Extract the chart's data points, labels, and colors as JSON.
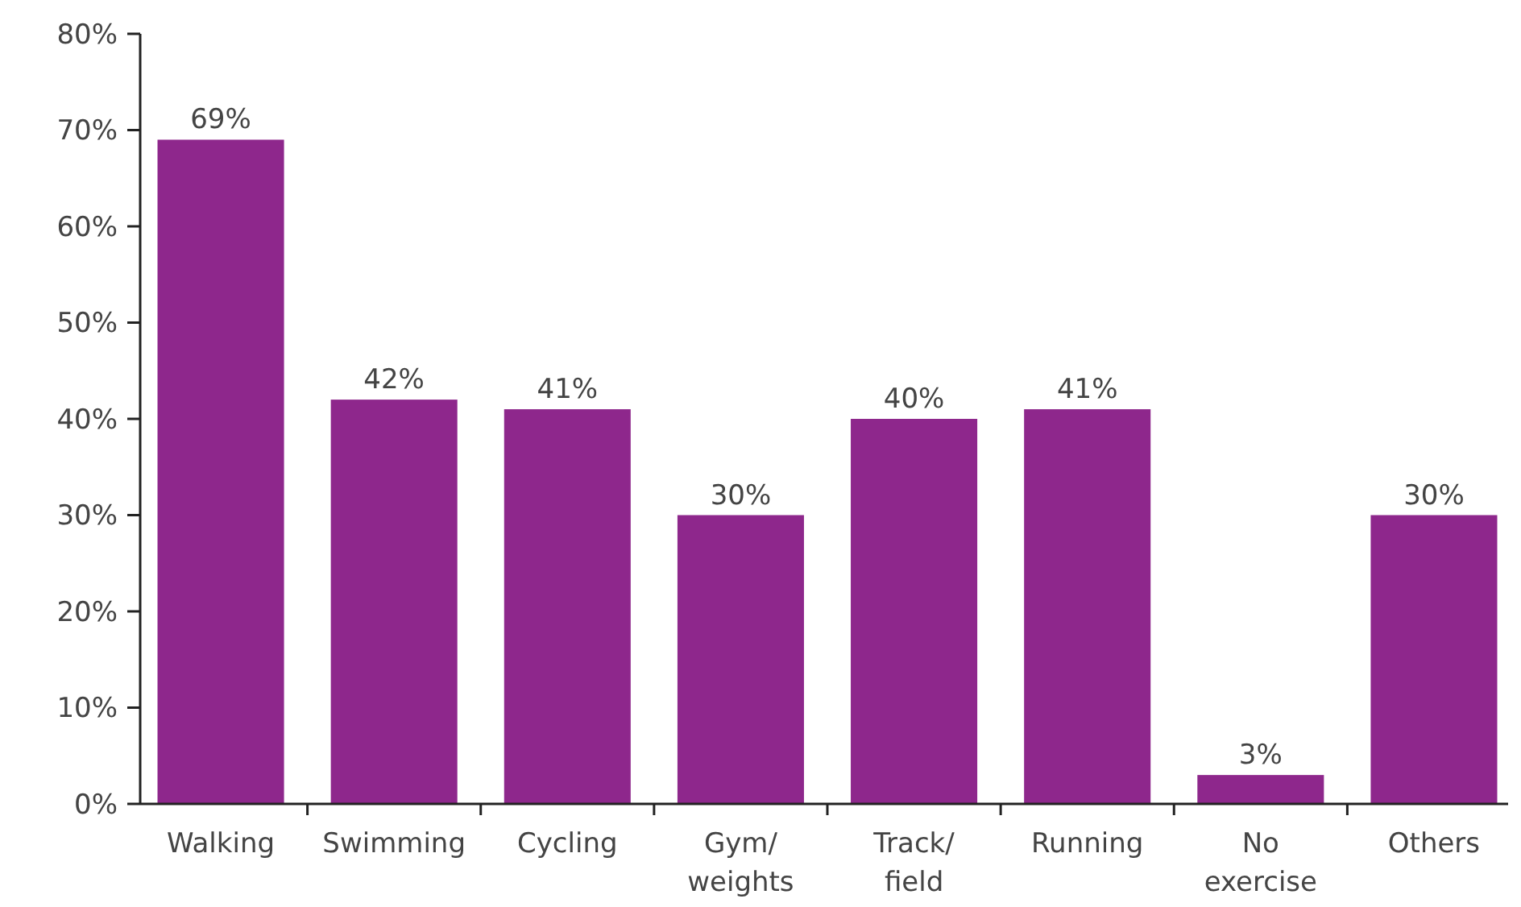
{
  "chart_data": {
    "type": "bar",
    "categories": [
      "Walking",
      "Swimming",
      "Cycling",
      "Gym/\nweights",
      "Track/\nfield",
      "Running",
      "No\nexercise",
      "Others"
    ],
    "values": [
      69,
      42,
      41,
      30,
      40,
      41,
      3,
      30
    ],
    "value_labels": [
      "69%",
      "42%",
      "41%",
      "30%",
      "40%",
      "41%",
      "3%",
      "30%"
    ],
    "color": "#8e278c",
    "ylim": [
      0,
      80
    ],
    "yticks": [
      {
        "value": 0,
        "label": "0%"
      },
      {
        "value": 10,
        "label": "10%"
      },
      {
        "value": 20,
        "label": "20%"
      },
      {
        "value": 30,
        "label": "30%"
      },
      {
        "value": 40,
        "label": "40%"
      },
      {
        "value": 50,
        "label": "50%"
      },
      {
        "value": 60,
        "label": "60%"
      },
      {
        "value": 70,
        "label": "70%"
      },
      {
        "value": 80,
        "label": "80%"
      }
    ],
    "grid": false
  }
}
